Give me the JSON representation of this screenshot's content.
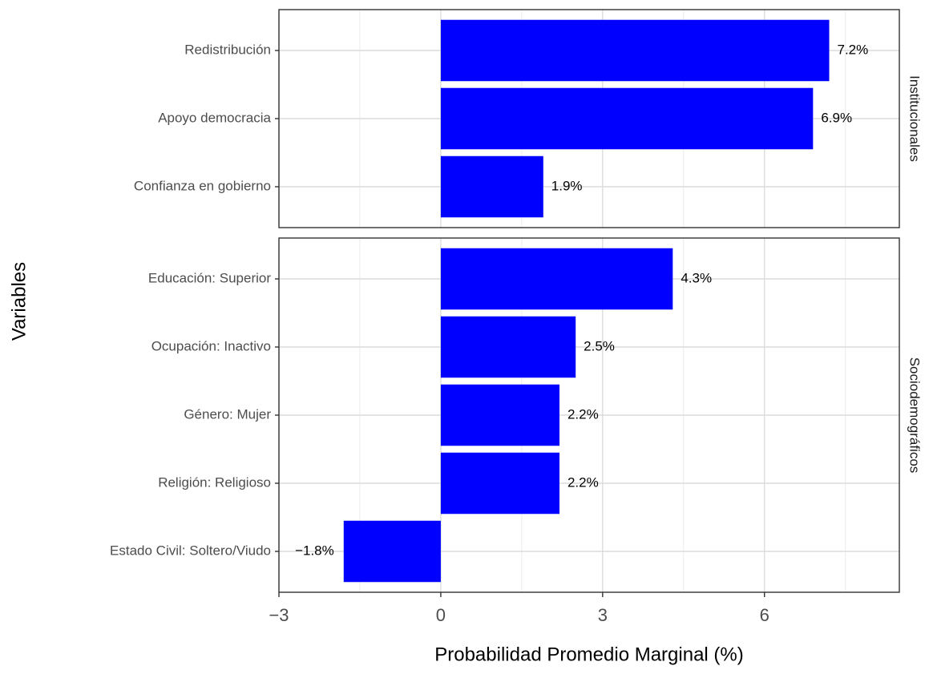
{
  "chart_data": [
    {
      "type": "bar",
      "facet": "Institucionales",
      "y_label": "Variables",
      "categories": [
        "Redistribución",
        "Apoyo democracia",
        "Confianza en gobierno"
      ],
      "values": [
        7.2,
        6.9,
        1.9
      ],
      "value_labels": [
        "7.2%",
        "6.9%",
        "1.9%"
      ],
      "color": "#0000ff",
      "xlim": [
        -3,
        8.5
      ],
      "xticks": [
        {
          "value": -3,
          "label": "−3"
        },
        0,
        3,
        6
      ],
      "minor_xticks": [
        -1.5,
        1.5,
        4.5,
        7.5
      ],
      "grid": true
    },
    {
      "type": "bar",
      "facet": "Sociodemográficos",
      "x_label": "Probabilidad Promedio Marginal (%)",
      "categories": [
        "Educación: Superior",
        "Ocupación: Inactivo",
        "Género: Mujer",
        "Religión: Religioso",
        "Estado Civil: Soltero/Viudo"
      ],
      "values": [
        4.3,
        2.5,
        2.2,
        2.2,
        -1.8
      ],
      "value_labels": [
        "4.3%",
        "2.5%",
        "2.2%",
        "2.2%",
        "−1.8%"
      ],
      "color": "#0000ff",
      "xlim": [
        -3,
        8.5
      ],
      "xticks": [
        {
          "value": -3,
          "label": "−3"
        },
        0,
        3,
        6
      ],
      "minor_xticks": [
        -1.5,
        1.5,
        4.5,
        7.5
      ],
      "grid": true
    }
  ]
}
